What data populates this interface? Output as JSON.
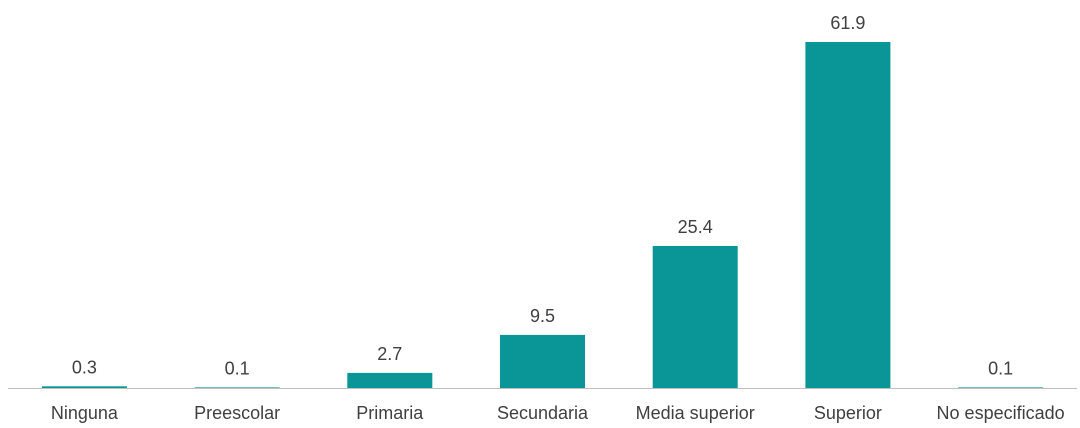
{
  "chart_data": {
    "type": "bar",
    "title": "",
    "xlabel": "",
    "ylabel": "",
    "categories": [
      "Ninguna",
      "Preescolar",
      "Primaria",
      "Secundaria",
      "Media superior",
      "Superior",
      "No especificado"
    ],
    "values": [
      0.3,
      0.1,
      2.7,
      9.5,
      25.4,
      61.9,
      0.1
    ],
    "value_labels": [
      "0.3",
      "0.1",
      "2.7",
      "9.5",
      "25.4",
      "61.9",
      "0.1"
    ],
    "ylim": [
      0,
      61.9
    ],
    "grid": false,
    "legend": "none",
    "colors": {
      "bar": "#0a9696",
      "axis": "#bfbfbf",
      "text": "#404040"
    }
  }
}
